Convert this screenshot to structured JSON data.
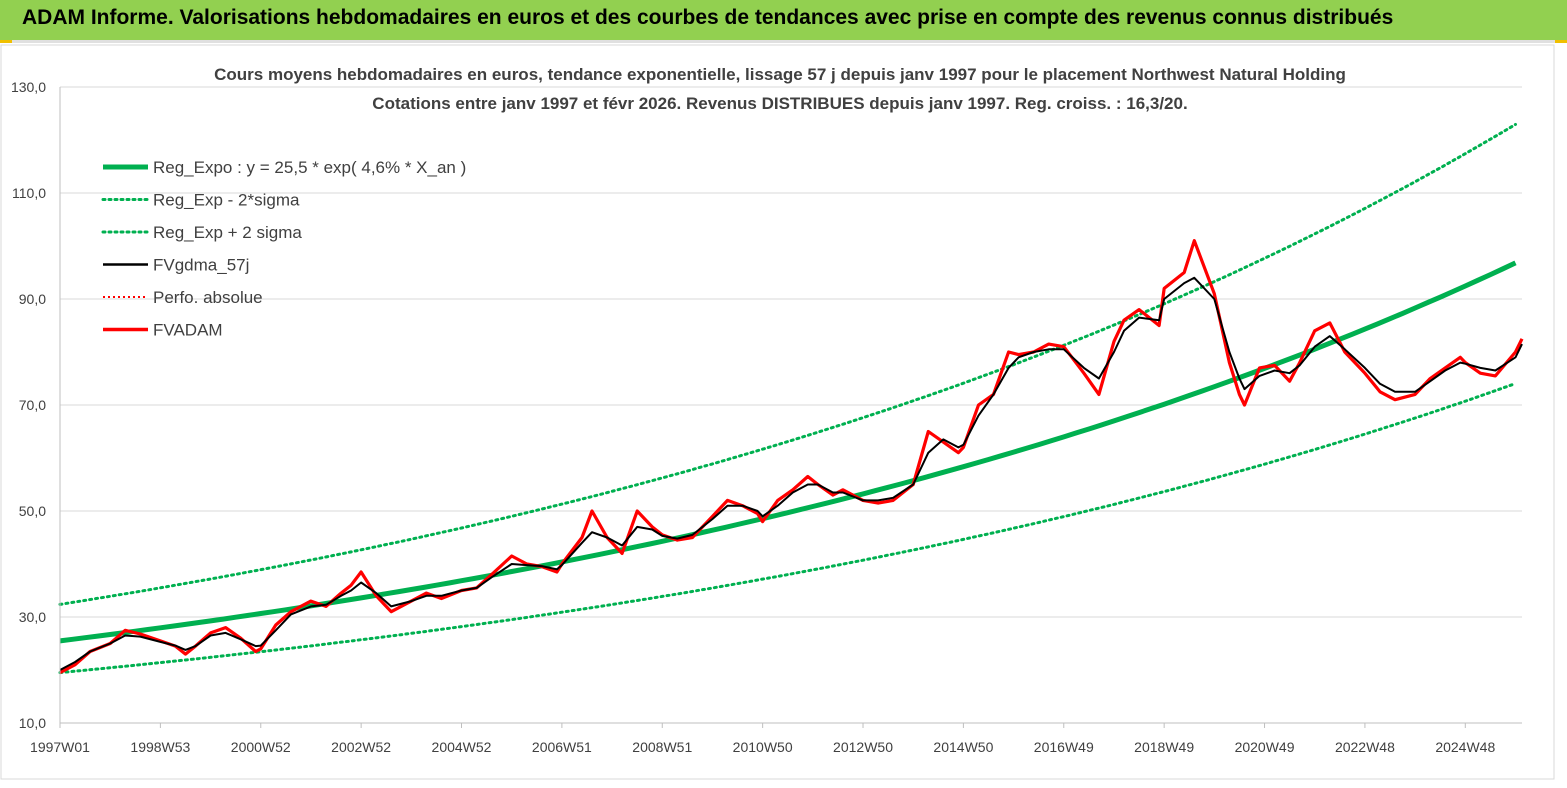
{
  "header": {
    "title": "ADAM Informe. Valorisations hebdomadaires en euros et des courbes de tendances avec prise en compte des revenus connus distribués"
  },
  "colors": {
    "banner": "#92d050",
    "trend": "#00b050",
    "sigma": "#00b050",
    "smoothed": "#000000",
    "perf": "#ff0000",
    "fvadam": "#ff0000",
    "grid": "#d9d9d9"
  },
  "chart_data": {
    "type": "line",
    "title": "Cours moyens hebdomadaires en euros, tendance exponentielle, lissage 57 j depuis janv 1997  pour le placement Northwest Natural Holding",
    "subtitle": "Cotations entre janv 1997 et févr 2026. Revenus DISTRIBUES depuis janv 1997. Reg. croiss. : 16,3/20.",
    "xlabel": "",
    "ylabel": "",
    "ylim": [
      10,
      130
    ],
    "yticks": [
      "130,0",
      "110,0",
      "90,0",
      "70,0",
      "50,0",
      "30,0",
      "10,0"
    ],
    "yticks_values": [
      130,
      110,
      90,
      70,
      50,
      30,
      10
    ],
    "xlim": [
      1997.0,
      2026.13
    ],
    "xticks": [
      "1997W01",
      "1998W53",
      "2000W52",
      "2002W52",
      "2004W52",
      "2006W51",
      "2008W51",
      "2010W50",
      "2012W50",
      "2014W50",
      "2016W49",
      "2018W49",
      "2020W49",
      "2022W48",
      "2024W48"
    ],
    "xticks_values": [
      1997.0,
      1999.0,
      2001.0,
      2003.0,
      2005.0,
      2007.0,
      2009.0,
      2011.0,
      2013.0,
      2015.0,
      2017.0,
      2019.0,
      2021.0,
      2023.0,
      2025.0
    ],
    "grid": "horizontal",
    "legend_position": "top-left",
    "legend": [
      {
        "key": "trend",
        "label": "Reg_Expo : y = 25,5 * exp( 4,6% *  X_an )",
        "style": "solid-thick"
      },
      {
        "key": "lower",
        "label": "Reg_Exp - 2*sigma",
        "style": "dotted-green"
      },
      {
        "key": "upper",
        "label": "Reg_Exp + 2 sigma",
        "style": "dotted-green"
      },
      {
        "key": "smooth",
        "label": "FVgdma_57j",
        "style": "solid-black"
      },
      {
        "key": "perf",
        "label": "Perfo. absolue",
        "style": "dotted-red"
      },
      {
        "key": "fvadam",
        "label": "FVADAM",
        "style": "solid-red"
      }
    ],
    "trend": {
      "a": 25.5,
      "rate": 0.046,
      "lower_factor": 0.765,
      "upper_factor": 1.27
    },
    "series": [
      {
        "name": "FVADAM",
        "x": [
          1997.0,
          1997.3,
          1997.6,
          1998.0,
          1998.3,
          1998.6,
          1999.0,
          1999.3,
          1999.5,
          1999.7,
          2000.0,
          2000.3,
          2000.6,
          2000.9,
          2001.0,
          2001.3,
          2001.6,
          2002.0,
          2002.3,
          2002.6,
          2002.8,
          2003.0,
          2003.3,
          2003.6,
          2004.0,
          2004.3,
          2004.6,
          2005.0,
          2005.3,
          2005.6,
          2006.0,
          2006.3,
          2006.6,
          2006.9,
          2007.0,
          2007.4,
          2007.6,
          2007.9,
          2008.2,
          2008.5,
          2008.8,
          2009.0,
          2009.3,
          2009.6,
          2010.0,
          2010.3,
          2010.6,
          2010.9,
          2011.0,
          2011.3,
          2011.6,
          2011.9,
          2012.1,
          2012.4,
          2012.6,
          2013.0,
          2013.3,
          2013.6,
          2014.0,
          2014.3,
          2014.6,
          2014.9,
          2015.0,
          2015.3,
          2015.6,
          2015.9,
          2016.1,
          2016.4,
          2016.7,
          2017.0,
          2017.4,
          2017.7,
          2018.0,
          2018.2,
          2018.5,
          2018.9,
          2019.0,
          2019.4,
          2019.6,
          2020.0,
          2020.3,
          2020.5,
          2020.6,
          2020.9,
          2021.2,
          2021.5,
          2021.7,
          2022.0,
          2022.3,
          2022.6,
          2023.0,
          2023.3,
          2023.6,
          2024.0,
          2024.3,
          2024.6,
          2024.9,
          2025.0,
          2025.3,
          2025.6,
          2026.0,
          2026.13
        ],
        "values": [
          19.5,
          21.0,
          23.5,
          25.0,
          27.5,
          26.8,
          25.5,
          24.5,
          23.0,
          24.5,
          27.0,
          28.0,
          26.0,
          23.5,
          24.0,
          28.5,
          31.0,
          33.0,
          32.0,
          34.5,
          36.0,
          38.5,
          34.0,
          31.0,
          33.0,
          34.5,
          33.5,
          35.0,
          35.5,
          38.0,
          41.5,
          40.0,
          39.5,
          38.5,
          40.0,
          45.0,
          50.0,
          45.0,
          42.0,
          50.0,
          47.0,
          45.5,
          44.5,
          45.0,
          49.0,
          52.0,
          51.0,
          49.5,
          48.0,
          52.0,
          54.0,
          56.5,
          55.0,
          53.0,
          54.0,
          52.0,
          51.5,
          52.0,
          55.0,
          65.0,
          63.0,
          61.0,
          62.0,
          70.0,
          72.0,
          80.0,
          79.5,
          80.0,
          81.5,
          81.0,
          76.0,
          72.0,
          82.0,
          86.0,
          88.0,
          85.0,
          92.0,
          95.0,
          101.0,
          91.0,
          78.0,
          72.0,
          70.0,
          77.0,
          77.5,
          74.5,
          78.0,
          84.0,
          85.5,
          80.0,
          76.0,
          72.5,
          71.0,
          72.0,
          75.0,
          77.0,
          79.0,
          78.0,
          76.0,
          75.5,
          80.0,
          82.5
        ]
      },
      {
        "name": "FVgdma_57j",
        "x": [
          1997.0,
          1997.3,
          1997.6,
          1998.0,
          1998.3,
          1998.6,
          1999.0,
          1999.3,
          1999.5,
          1999.7,
          2000.0,
          2000.3,
          2000.6,
          2000.9,
          2001.0,
          2001.3,
          2001.6,
          2002.0,
          2002.3,
          2002.6,
          2002.8,
          2003.0,
          2003.3,
          2003.6,
          2004.0,
          2004.3,
          2004.6,
          2005.0,
          2005.3,
          2005.6,
          2006.0,
          2006.3,
          2006.6,
          2006.9,
          2007.0,
          2007.4,
          2007.6,
          2007.9,
          2008.2,
          2008.5,
          2008.8,
          2009.0,
          2009.3,
          2009.6,
          2010.0,
          2010.3,
          2010.6,
          2010.9,
          2011.0,
          2011.3,
          2011.6,
          2011.9,
          2012.1,
          2012.4,
          2012.6,
          2013.0,
          2013.3,
          2013.6,
          2014.0,
          2014.3,
          2014.6,
          2014.9,
          2015.0,
          2015.3,
          2015.6,
          2015.9,
          2016.1,
          2016.4,
          2016.7,
          2017.0,
          2017.4,
          2017.7,
          2018.0,
          2018.2,
          2018.5,
          2018.9,
          2019.0,
          2019.4,
          2019.6,
          2020.0,
          2020.3,
          2020.5,
          2020.6,
          2020.9,
          2021.2,
          2021.5,
          2021.7,
          2022.0,
          2022.3,
          2022.6,
          2023.0,
          2023.3,
          2023.6,
          2024.0,
          2024.3,
          2024.6,
          2024.9,
          2025.0,
          2025.3,
          2025.6,
          2026.0,
          2026.13
        ],
        "values": [
          20.0,
          21.5,
          23.5,
          25.0,
          26.5,
          26.3,
          25.3,
          24.6,
          23.8,
          24.5,
          26.5,
          27.0,
          25.8,
          24.5,
          24.6,
          27.5,
          30.5,
          32.0,
          32.3,
          34.0,
          35.0,
          36.5,
          34.5,
          32.0,
          33.0,
          34.0,
          34.0,
          35.0,
          35.5,
          37.5,
          40.0,
          39.8,
          39.6,
          39.0,
          39.8,
          44.0,
          46.0,
          45.0,
          43.5,
          47.0,
          46.5,
          45.3,
          44.8,
          45.5,
          48.5,
          51.0,
          51.0,
          50.0,
          49.0,
          51.0,
          53.5,
          55.0,
          55.0,
          53.5,
          53.5,
          52.0,
          52.0,
          52.5,
          55.0,
          61.0,
          63.5,
          62.0,
          62.5,
          68.0,
          72.0,
          77.0,
          79.0,
          80.0,
          80.5,
          80.5,
          77.0,
          75.0,
          80.0,
          84.0,
          86.5,
          86.0,
          90.0,
          93.0,
          94.0,
          90.0,
          80.0,
          75.0,
          73.0,
          75.5,
          76.5,
          76.0,
          77.5,
          81.0,
          83.0,
          80.5,
          77.0,
          74.0,
          72.5,
          72.5,
          74.5,
          76.5,
          78.0,
          77.8,
          77.0,
          76.5,
          79.0,
          81.5
        ]
      }
    ]
  }
}
